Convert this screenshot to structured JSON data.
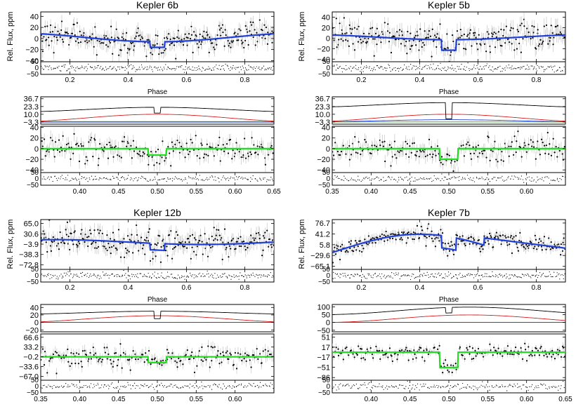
{
  "colors": {
    "fit": "#1f3fd6",
    "detrended_fit": "#22dd22",
    "total_component": "#000000",
    "thermal_component": "#d62020",
    "reflection_component": "#2040d0",
    "extra_component": "#20a020",
    "errorbar": "#bdbdbd",
    "data_point": "#000000"
  },
  "chart_data": [
    {
      "type": "scatter",
      "title": "Kepler 6b",
      "ylabel": "Rel. Flux, ppm",
      "xlabel": "Phase",
      "top": {
        "xlim": [
          0.1,
          0.9
        ],
        "xticks": [
          "0.2",
          "0.4",
          "0.6",
          "0.8"
        ],
        "xtick_values": [
          0.2,
          0.4,
          0.6,
          0.8
        ],
        "ylim": [
          -42,
          48
        ],
        "yticks": [
          "40",
          "20",
          "0",
          "−20",
          "−40"
        ],
        "ytick_values": [
          40,
          20,
          0,
          -20,
          -40
        ],
        "data_scatter": 12,
        "fit": {
          "base": 2,
          "amplitude": 8,
          "baseline_phase": 0.5,
          "slope": 0,
          "curve": "cos",
          "eclipse_center": 0.5,
          "eclipse_depth": 10,
          "eclipse_half_width": 0.025
        },
        "residual_ylim": [
          -50,
          50
        ],
        "residual_yticks": [
          "50",
          "0",
          "−50"
        ],
        "residual_ytick_values": [
          50,
          0,
          -50
        ]
      },
      "components": {
        "yticks": [
          "36.7",
          "23.3",
          "10.0",
          "−3.3"
        ],
        "ytick_values": [
          36.7,
          23.3,
          10.0,
          -3.3
        ],
        "ylim": [
          -7,
          40
        ],
        "total": {
          "base": 14,
          "amplitude": 8,
          "eclipse_center": 0.5,
          "eclipse_depth": 10
        },
        "red": {
          "base": -3,
          "amplitude": 13
        },
        "blue": {
          "base": -3.5,
          "amplitude": 0
        },
        "green": {
          "base": -2.5,
          "amplitude": 0
        }
      },
      "bottom": {
        "xlim": [
          0.35,
          0.65
        ],
        "xticks": [
          "0.40",
          "0.45",
          "0.50",
          "0.55",
          "0.60",
          "0.65"
        ],
        "xtick_values": [
          0.4,
          0.45,
          0.5,
          0.55,
          0.6,
          0.65
        ],
        "ylim": [
          -45,
          42
        ],
        "yticks": [
          "40",
          "20",
          "0",
          "−20",
          "−40"
        ],
        "ytick_values": [
          40,
          20,
          0,
          -20,
          -40
        ],
        "data_scatter": 12,
        "fit": {
          "base": 0,
          "eclipse_center": 0.5,
          "eclipse_depth": 12,
          "eclipse_half_width": 0.012
        },
        "residual_yticks": [
          "50",
          "0",
          "−50"
        ],
        "residual_ytick_values": [
          50,
          0,
          -50
        ]
      }
    },
    {
      "type": "scatter",
      "title": "Kepler 5b",
      "ylabel": "Rel. Flux, ppm",
      "xlabel": "Phase",
      "top": {
        "xlim": [
          0.1,
          0.9
        ],
        "xticks": [
          "0.2",
          "0.4",
          "0.6",
          "0.8"
        ],
        "xtick_values": [
          0.2,
          0.4,
          0.6,
          0.8
        ],
        "ylim": [
          -45,
          50
        ],
        "yticks": [
          "40",
          "20",
          "0",
          "−20",
          "−40"
        ],
        "ytick_values": [
          40,
          20,
          0,
          -20,
          -40
        ],
        "data_scatter": 14,
        "fit": {
          "base": 2,
          "amplitude": 5,
          "baseline_phase": 0.5,
          "slope": 0,
          "curve": "cos",
          "eclipse_center": 0.5,
          "eclipse_depth": 20,
          "eclipse_half_width": 0.025
        },
        "residual_ylim": [
          -50,
          50
        ],
        "residual_yticks": [
          "50",
          "0",
          "−50"
        ],
        "residual_ytick_values": [
          50,
          0,
          -50
        ]
      },
      "components": {
        "yticks": [
          "36.7",
          "23.3",
          "10.0",
          "−3.3"
        ],
        "ytick_values": [
          36.7,
          23.3,
          10.0,
          -3.3
        ],
        "ylim": [
          -7,
          40
        ],
        "total": {
          "base": 22,
          "amplitude": 8,
          "eclipse_center": 0.5,
          "eclipse_depth": 28
        },
        "red": {
          "base": -3,
          "amplitude": 13
        },
        "blue": {
          "base": -3.3,
          "amplitude": -4
        },
        "green": {
          "base": -3.2,
          "amplitude": 0
        }
      },
      "bottom": {
        "xlim": [
          0.35,
          0.65
        ],
        "xticks": [
          "0.35",
          "0.40",
          "0.45",
          "0.50",
          "0.55",
          "0.60"
        ],
        "xtick_values": [
          0.35,
          0.4,
          0.45,
          0.5,
          0.55,
          0.6
        ],
        "ylim": [
          -45,
          42
        ],
        "yticks": [
          "40",
          "20",
          "0",
          "−20",
          "−40"
        ],
        "ytick_values": [
          40,
          20,
          0,
          -20,
          -40
        ],
        "data_scatter": 12,
        "fit": {
          "base": 0,
          "eclipse_center": 0.5,
          "eclipse_depth": 20,
          "eclipse_half_width": 0.012
        },
        "residual_yticks": [
          "50",
          "0",
          "−50"
        ],
        "residual_ytick_values": [
          50,
          0,
          -50
        ]
      }
    },
    {
      "type": "scatter",
      "title": "Kepler 12b",
      "ylabel": "Rel. Flux, ppm",
      "xlabel": "Phase",
      "top": {
        "xlim": [
          0.1,
          0.9
        ],
        "xticks": [
          "0.2",
          "0.4",
          "0.6",
          "0.8"
        ],
        "xtick_values": [
          0.2,
          0.4,
          0.6,
          0.8
        ],
        "ylim": [
          -88,
          78
        ],
        "yticks": [
          "65.0",
          "30.6",
          "−3.9",
          "−38.3",
          "−72.8"
        ],
        "ytick_values": [
          65.0,
          30.6,
          -3.9,
          -38.3,
          -72.8
        ],
        "data_scatter": 22,
        "fit": {
          "base": 3,
          "amplitude": 8,
          "baseline_phase": 0.65,
          "slope": 0,
          "curve": "cos",
          "eclipse_center": 0.5,
          "eclipse_depth": 22,
          "eclipse_half_width": 0.025
        },
        "residual_ylim": [
          -50,
          50
        ],
        "residual_yticks": [
          "50",
          "0",
          "−50"
        ],
        "residual_ytick_values": [
          50,
          0,
          -50
        ]
      },
      "components": {
        "yticks": [
          "40",
          "20",
          "0",
          "−20"
        ],
        "ytick_values": [
          40,
          20,
          0,
          -20
        ],
        "ylim": [
          -25,
          48
        ],
        "total": {
          "base": 22,
          "amplitude": 8,
          "eclipse_center": 0.5,
          "eclipse_depth": 20
        },
        "red": {
          "base": 0,
          "amplitude": 18
        },
        "blue": {
          "base": 0,
          "amplitude": 0
        },
        "green": {
          "base": 0,
          "amplitude": 0
        }
      },
      "bottom": {
        "xlim": [
          0.35,
          0.65
        ],
        "xticks": [
          "0.35",
          "0.40",
          "0.45",
          "0.50",
          "0.55",
          "0.60"
        ],
        "xtick_values": [
          0.35,
          0.4,
          0.45,
          0.5,
          0.55,
          0.6
        ],
        "ylim": [
          -80,
          78
        ],
        "yticks": [
          "66.6",
          "33.2",
          "−0.2",
          "−33.6",
          "−67.0"
        ],
        "ytick_values": [
          66.6,
          33.2,
          -0.2,
          -33.6,
          -67.0
        ],
        "data_scatter": 18,
        "fit": {
          "base": 0,
          "eclipse_center": 0.5,
          "eclipse_depth": 20,
          "eclipse_half_width": 0.012
        },
        "residual_yticks": [
          "50",
          "0",
          "−50"
        ],
        "residual_ytick_values": [
          50,
          0,
          -50
        ]
      }
    },
    {
      "type": "scatter",
      "title": "Kepler 7b",
      "ylabel": "Rel. Flux, ppm",
      "xlabel": "Phase",
      "top": {
        "xlim": [
          0.1,
          0.9
        ],
        "xticks": [
          "0.2",
          "0.4",
          "0.6",
          "0.8"
        ],
        "xtick_values": [
          0.2,
          0.4,
          0.6,
          0.8
        ],
        "ylim": [
          -75,
          88
        ],
        "yticks": [
          "76.7",
          "41.2",
          "5.8",
          "−29.6",
          "−65.1"
        ],
        "ytick_values": [
          76.7,
          41.2,
          5.8,
          -29.6,
          -65.1
        ],
        "data_scatter": 14,
        "fit": {
          "base": -20,
          "amplitude": 0,
          "baseline_phase": 0.5,
          "slope": 0,
          "curve": "phase7b",
          "eclipse_center": 0.5,
          "eclipse_depth": 40,
          "eclipse_half_width": 0.025
        },
        "residual_ylim": [
          -50,
          50
        ],
        "residual_yticks": [
          "50",
          "0",
          "−50"
        ],
        "residual_ytick_values": [
          50,
          0,
          -50
        ]
      },
      "components": {
        "yticks": [
          "100",
          "50",
          "0",
          "−50"
        ],
        "ytick_values": [
          100,
          50,
          0,
          -50
        ],
        "ylim": [
          -60,
          115
        ],
        "total": {
          "base": 50,
          "amplitude": 48,
          "eclipse_center": 0.5,
          "eclipse_depth": 35,
          "shift": 0.07
        },
        "red": {
          "base": 0,
          "amplitude": 48,
          "shift": 0.07
        },
        "blue": {
          "base": 0,
          "amplitude": 0
        },
        "green": {
          "base": 0,
          "amplitude": 0
        }
      },
      "bottom": {
        "xlim": [
          0.35,
          0.65
        ],
        "xticks": [
          "0.40",
          "0.45",
          "0.50",
          "0.55",
          "0.60",
          "0.65"
        ],
        "xtick_values": [
          0.4,
          0.45,
          0.5,
          0.55,
          0.6,
          0.65
        ],
        "ylim": [
          -95,
          62
        ],
        "yticks": [
          "51",
          "17",
          "−17",
          "−51",
          "−86"
        ],
        "ytick_values": [
          51,
          17,
          -17,
          -51,
          -86
        ],
        "data_scatter": 12,
        "fit": {
          "base": 0,
          "eclipse_center": 0.5,
          "eclipse_depth": 52,
          "eclipse_half_width": 0.012
        },
        "residual_yticks": [
          "50",
          "0",
          "−50"
        ],
        "residual_ytick_values": [
          50,
          0,
          -50
        ]
      }
    }
  ]
}
